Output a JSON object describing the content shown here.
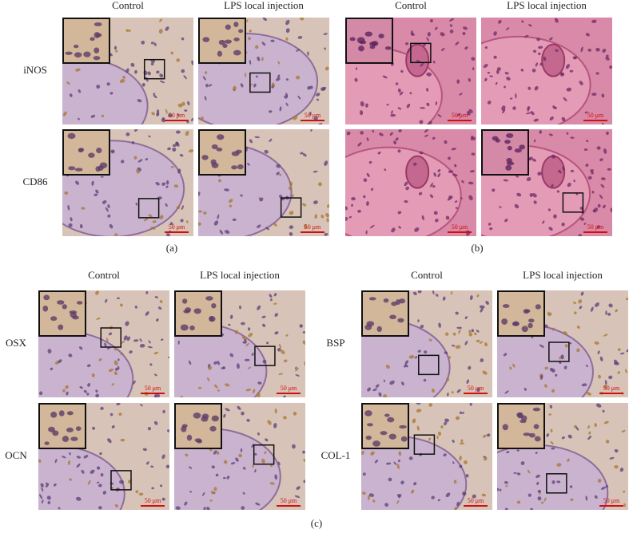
{
  "blocks": [
    {
      "columns": [
        "Control",
        "LPS local injection"
      ],
      "rows": [
        {
          "label": "iNOS",
          "images": [
            {
              "scale": "50 μm"
            },
            {
              "scale": "50 μm"
            }
          ]
        },
        {
          "label": "CD86",
          "images": [
            {
              "scale": "50 μm"
            },
            {
              "scale": "50 μm"
            }
          ]
        }
      ]
    },
    {
      "columns": [
        "Control",
        "LPS local injection"
      ],
      "rows": [
        {
          "images": [
            {
              "scale": "50 μm"
            },
            {
              "scale": "50 μm"
            }
          ]
        },
        {
          "images": [
            {
              "scale": "50 μm"
            },
            {
              "scale": "50 μm"
            }
          ]
        }
      ]
    },
    {
      "columns": [
        "Control",
        "LPS local injection"
      ],
      "rows": [
        {
          "label": "OSX",
          "images": [
            {
              "scale": "50 μm"
            },
            {
              "scale": "50 μm"
            }
          ]
        },
        {
          "label": "OCN",
          "images": [
            {
              "scale": "50 μm"
            },
            {
              "scale": "50 μm"
            }
          ]
        }
      ]
    },
    {
      "columns": [
        "Control",
        "LPS local injection"
      ],
      "rows": [
        {
          "label": "BSP",
          "images": [
            {
              "scale": "50 μm"
            },
            {
              "scale": "50 μm"
            }
          ]
        },
        {
          "label": "COL-1",
          "images": [
            {
              "scale": "50 μm"
            },
            {
              "scale": "50 μm"
            }
          ]
        }
      ]
    }
  ],
  "panel_labels": [
    "(a)",
    "(b)",
    "(c)"
  ]
}
